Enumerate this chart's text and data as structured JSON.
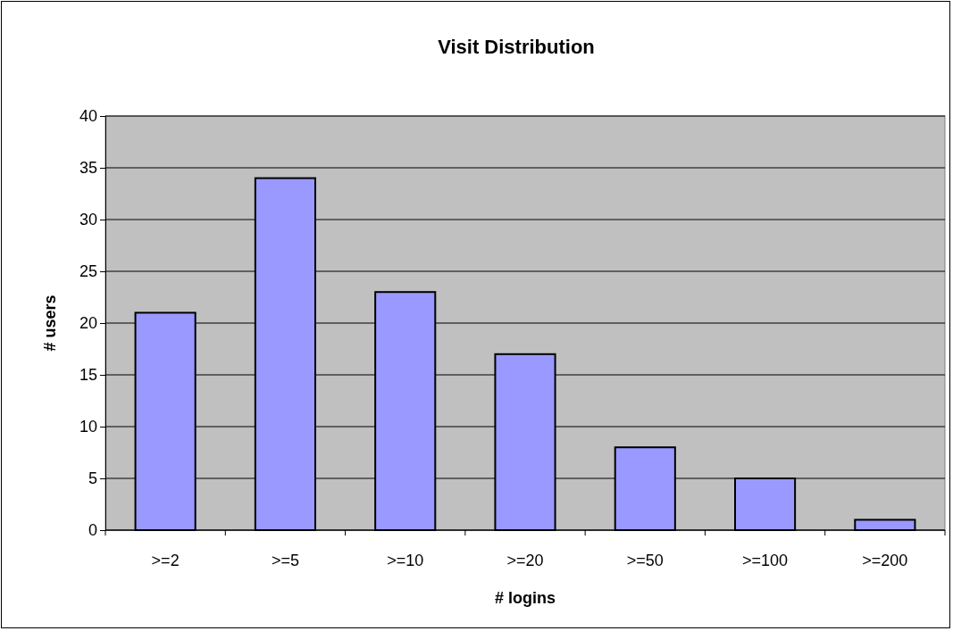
{
  "chart_data": {
    "type": "bar",
    "title": "Visit Distribution",
    "xlabel": "# logins",
    "ylabel": "# users",
    "categories": [
      ">=2",
      ">=5",
      ">=10",
      ">=20",
      ">=50",
      ">=100",
      ">=200"
    ],
    "values": [
      21,
      34,
      23,
      17,
      8,
      5,
      1
    ],
    "color": "#9999ff",
    "ylim": [
      0,
      40
    ],
    "yticks": [
      0,
      5,
      10,
      15,
      20,
      25,
      30,
      35,
      40
    ],
    "grid": "y"
  }
}
